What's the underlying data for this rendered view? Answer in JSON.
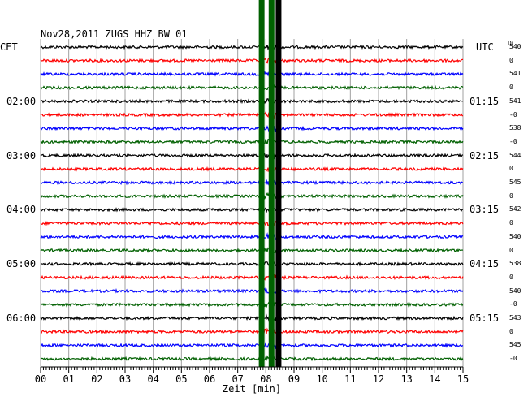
{
  "header": {
    "title": "Nov28,2011   ZUGS HHZ BW 01",
    "left_timezone": "CET",
    "right_timezone": "UTC",
    "dc_label": "DC"
  },
  "chart_data": {
    "type": "line",
    "title": "Nov28,2011   ZUGS HHZ BW 01",
    "xlabel": "Zeit [min]",
    "xlim": [
      0,
      15
    ],
    "x_ticks": [
      "00",
      "01",
      "02",
      "03",
      "04",
      "05",
      "06",
      "07",
      "08",
      "09",
      "10",
      "11",
      "12",
      "13",
      "14",
      "15"
    ],
    "grid": true,
    "trace_colors": [
      "#000000",
      "#ff0000",
      "#0000ff",
      "#006000"
    ],
    "trace_count": 24,
    "left_time_labels": [
      {
        "trace": 4,
        "label": "02:00"
      },
      {
        "trace": 8,
        "label": "03:00"
      },
      {
        "trace": 12,
        "label": "04:00"
      },
      {
        "trace": 16,
        "label": "05:00"
      },
      {
        "trace": 20,
        "label": "06:00"
      }
    ],
    "right_time_labels": [
      {
        "trace": 4,
        "label": "01:15"
      },
      {
        "trace": 8,
        "label": "02:15"
      },
      {
        "trace": 12,
        "label": "03:15"
      },
      {
        "trace": 16,
        "label": "04:15"
      },
      {
        "trace": 20,
        "label": "05:15"
      }
    ],
    "dc_values": [
      "540",
      "0",
      "541",
      "0",
      "541",
      "-0",
      "538",
      "-0",
      "544",
      "0",
      "545",
      "0",
      "542",
      "0",
      "540",
      "0",
      "538",
      "0",
      "540",
      "-0",
      "543",
      "0",
      "545",
      "-0"
    ],
    "event": {
      "start_minute": 7.8,
      "end_minute": 8.5,
      "lines": [
        {
          "minute": 7.85,
          "color": "#006000"
        },
        {
          "minute": 8.2,
          "color": "#006000"
        },
        {
          "minute": 8.45,
          "color": "#000000"
        }
      ]
    }
  }
}
